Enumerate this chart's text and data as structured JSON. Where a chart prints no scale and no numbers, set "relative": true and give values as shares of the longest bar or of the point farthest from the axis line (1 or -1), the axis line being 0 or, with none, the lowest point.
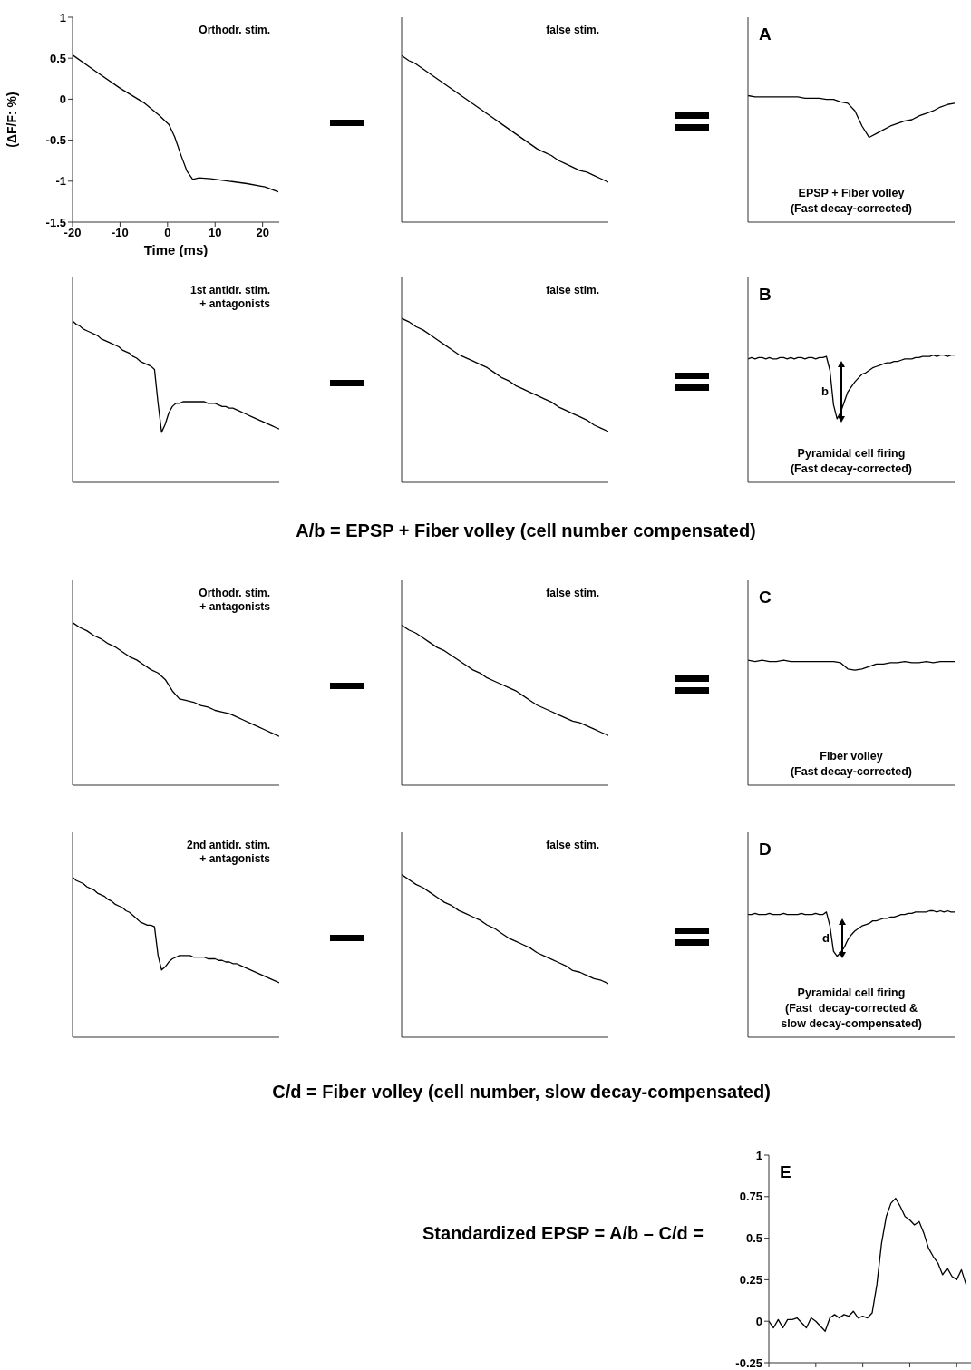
{
  "chart_data": [
    {
      "type": "line",
      "annotations": [
        "Orthodr. stim."
      ],
      "ylabel": "(ΔF/F: %)",
      "xlabel": "Time (ms)",
      "color": "#000000",
      "xlim": [
        -20,
        23.5
      ],
      "xticks": [
        -20,
        -10,
        0,
        10,
        20
      ],
      "ylim": [
        -1.5,
        1
      ],
      "yticks": [
        1,
        0.5,
        0,
        -0.5,
        -1,
        -1.5
      ],
      "x": [
        -20,
        -14.9,
        -9.9,
        -4.8,
        -1.7,
        0.3,
        1.5,
        2.8,
        4.1,
        5.3,
        6.6,
        9.1,
        12.9,
        16.7,
        20.5,
        23.3
      ],
      "values": [
        0.54,
        0.33,
        0.13,
        -0.05,
        -0.2,
        -0.31,
        -0.46,
        -0.68,
        -0.88,
        -0.98,
        -0.96,
        -0.97,
        -1.0,
        -1.03,
        -1.07,
        -1.13
      ]
    },
    {
      "type": "line",
      "relative": true,
      "annotations": [
        "false stim."
      ],
      "color": "#000000",
      "categories": [
        null,
        null,
        null,
        null,
        null,
        null,
        null,
        null,
        null,
        null,
        null,
        null,
        null,
        null,
        null,
        null,
        null,
        null,
        null,
        null,
        null,
        null,
        null,
        null,
        null,
        null,
        null,
        null,
        null,
        null
      ],
      "values": [
        1.0,
        0.97,
        0.95,
        0.92,
        0.89,
        0.86,
        0.83,
        0.8,
        0.77,
        0.74,
        0.71,
        0.68,
        0.65,
        0.62,
        0.59,
        0.56,
        0.53,
        0.5,
        0.47,
        0.44,
        0.42,
        0.4,
        0.37,
        0.35,
        0.33,
        0.31,
        0.3,
        0.28,
        0.26,
        0.24
      ]
    },
    {
      "type": "line",
      "relative": true,
      "title": "A",
      "annotations": [
        "EPSP + Fiber volley",
        "(Fast decay-corrected)"
      ],
      "color": "#000000",
      "categories": [
        null,
        null,
        null,
        null,
        null,
        null,
        null,
        null,
        null,
        null,
        null,
        null,
        null,
        null,
        null,
        null,
        null,
        null,
        null,
        null,
        null,
        null,
        null,
        null,
        null,
        null,
        null,
        null,
        null,
        null
      ],
      "values": [
        1.0,
        0.99,
        0.99,
        0.99,
        0.99,
        0.99,
        0.99,
        0.99,
        0.98,
        0.98,
        0.98,
        0.97,
        0.97,
        0.95,
        0.94,
        0.88,
        0.76,
        0.67,
        0.7,
        0.73,
        0.76,
        0.78,
        0.8,
        0.81,
        0.84,
        0.86,
        0.88,
        0.91,
        0.93,
        0.94
      ]
    },
    {
      "type": "line",
      "relative": true,
      "annotations": [
        "1st antidr. stim.",
        "+ antagonists"
      ],
      "color": "#000000",
      "categories": [
        null,
        null,
        null,
        null,
        null,
        null,
        null,
        null,
        null,
        null,
        null,
        null,
        null,
        null,
        null,
        null,
        null,
        null,
        null,
        null,
        null,
        null,
        null,
        null,
        null,
        null,
        null,
        null,
        null,
        null,
        null,
        null,
        null,
        null,
        null,
        null,
        null,
        null,
        null,
        null,
        null,
        null,
        null,
        null,
        null,
        null,
        null,
        null,
        null,
        null,
        null,
        null,
        null,
        null,
        null,
        null,
        null,
        null,
        null
      ],
      "values": [
        1.0,
        0.98,
        0.97,
        0.95,
        0.94,
        0.93,
        0.92,
        0.91,
        0.89,
        0.88,
        0.87,
        0.86,
        0.85,
        0.84,
        0.82,
        0.81,
        0.8,
        0.78,
        0.77,
        0.75,
        0.74,
        0.73,
        0.72,
        0.7,
        0.49,
        0.31,
        0.36,
        0.43,
        0.47,
        0.49,
        0.49,
        0.5,
        0.5,
        0.5,
        0.5,
        0.5,
        0.5,
        0.5,
        0.49,
        0.49,
        0.49,
        0.48,
        0.47,
        0.47,
        0.46,
        0.46,
        0.45,
        0.44,
        0.43,
        0.42,
        0.41,
        0.4,
        0.39,
        0.38,
        0.37,
        0.36,
        0.35,
        0.34,
        0.33
      ]
    },
    {
      "type": "line",
      "relative": true,
      "annotations": [
        "false stim."
      ],
      "color": "#000000",
      "categories": [
        null,
        null,
        null,
        null,
        null,
        null,
        null,
        null,
        null,
        null,
        null,
        null,
        null,
        null,
        null,
        null,
        null,
        null,
        null,
        null,
        null,
        null,
        null,
        null,
        null,
        null,
        null,
        null,
        null,
        null
      ],
      "values": [
        1.0,
        0.98,
        0.95,
        0.93,
        0.9,
        0.87,
        0.84,
        0.81,
        0.78,
        0.76,
        0.74,
        0.72,
        0.7,
        0.67,
        0.64,
        0.62,
        0.59,
        0.57,
        0.55,
        0.53,
        0.51,
        0.49,
        0.46,
        0.44,
        0.42,
        0.4,
        0.38,
        0.35,
        0.33,
        0.31
      ]
    },
    {
      "type": "line",
      "relative": true,
      "title": "B",
      "annotations": [
        "Pyramidal cell firing",
        "(Fast decay-corrected)",
        "b"
      ],
      "color": "#000000",
      "categories": [
        null,
        null,
        null,
        null,
        null,
        null,
        null,
        null,
        null,
        null,
        null,
        null,
        null,
        null,
        null,
        null,
        null,
        null,
        null,
        null,
        null,
        null,
        null,
        null,
        null,
        null,
        null,
        null,
        null,
        null,
        null,
        null,
        null,
        null,
        null,
        null,
        null,
        null,
        null,
        null,
        null,
        null,
        null,
        null,
        null,
        null,
        null,
        null,
        null,
        null,
        null,
        null,
        null,
        null,
        null,
        null,
        null,
        null,
        null
      ],
      "values": [
        0.97,
        0.98,
        0.97,
        0.98,
        0.98,
        0.97,
        0.98,
        0.97,
        0.97,
        0.98,
        0.98,
        0.97,
        0.98,
        0.97,
        0.98,
        0.98,
        0.97,
        0.98,
        0.98,
        0.97,
        0.98,
        0.98,
        0.99,
        0.88,
        0.61,
        0.5,
        0.55,
        0.63,
        0.71,
        0.75,
        0.79,
        0.82,
        0.85,
        0.86,
        0.88,
        0.9,
        0.91,
        0.92,
        0.93,
        0.94,
        0.94,
        0.95,
        0.95,
        0.96,
        0.97,
        0.97,
        0.97,
        0.98,
        0.98,
        0.99,
        0.99,
        0.99,
        1.0,
        0.99,
        1.0,
        1.0,
        0.99,
        1.0,
        1.0
      ]
    },
    {
      "type": "other",
      "title": "A/b = EPSP + Fiber volley (cell number compensated)"
    },
    {
      "type": "line",
      "relative": true,
      "annotations": [
        "Orthodr. stim.",
        "+ antagonists"
      ],
      "color": "#000000",
      "categories": [
        null,
        null,
        null,
        null,
        null,
        null,
        null,
        null,
        null,
        null,
        null,
        null,
        null,
        null,
        null,
        null,
        null,
        null,
        null,
        null,
        null,
        null,
        null,
        null,
        null,
        null,
        null,
        null,
        null,
        null
      ],
      "values": [
        1.0,
        0.97,
        0.95,
        0.92,
        0.9,
        0.87,
        0.85,
        0.82,
        0.79,
        0.77,
        0.74,
        0.71,
        0.69,
        0.65,
        0.58,
        0.53,
        0.52,
        0.51,
        0.49,
        0.48,
        0.46,
        0.45,
        0.44,
        0.42,
        0.4,
        0.38,
        0.36,
        0.34,
        0.32,
        0.3
      ]
    },
    {
      "type": "line",
      "relative": true,
      "annotations": [
        "false stim."
      ],
      "color": "#000000",
      "categories": [
        null,
        null,
        null,
        null,
        null,
        null,
        null,
        null,
        null,
        null,
        null,
        null,
        null,
        null,
        null,
        null,
        null,
        null,
        null,
        null,
        null,
        null,
        null,
        null,
        null,
        null,
        null,
        null,
        null,
        null
      ],
      "values": [
        1.0,
        0.97,
        0.95,
        0.92,
        0.89,
        0.86,
        0.84,
        0.81,
        0.78,
        0.75,
        0.72,
        0.7,
        0.67,
        0.65,
        0.63,
        0.61,
        0.59,
        0.56,
        0.53,
        0.5,
        0.48,
        0.46,
        0.44,
        0.42,
        0.4,
        0.39,
        0.37,
        0.35,
        0.33,
        0.31
      ]
    },
    {
      "type": "line",
      "relative": true,
      "title": "C",
      "annotations": [
        "Fiber volley",
        "(Fast decay-corrected)"
      ],
      "color": "#000000",
      "categories": [
        null,
        null,
        null,
        null,
        null,
        null,
        null,
        null,
        null,
        null,
        null,
        null,
        null,
        null,
        null,
        null,
        null,
        null,
        null,
        null,
        null,
        null,
        null,
        null,
        null,
        null,
        null,
        null,
        null,
        null
      ],
      "values": [
        1.0,
        0.99,
        1.0,
        0.99,
        0.99,
        1.0,
        0.99,
        0.99,
        0.99,
        0.99,
        0.99,
        0.99,
        0.99,
        0.98,
        0.93,
        0.92,
        0.93,
        0.95,
        0.97,
        0.97,
        0.98,
        0.98,
        0.99,
        0.98,
        0.98,
        0.99,
        0.98,
        0.99,
        0.99,
        0.99
      ]
    },
    {
      "type": "line",
      "relative": true,
      "annotations": [
        "2nd antidr. stim.",
        "+ antagonists"
      ],
      "color": "#000000",
      "categories": [
        null,
        null,
        null,
        null,
        null,
        null,
        null,
        null,
        null,
        null,
        null,
        null,
        null,
        null,
        null,
        null,
        null,
        null,
        null,
        null,
        null,
        null,
        null,
        null,
        null,
        null,
        null,
        null,
        null,
        null,
        null,
        null,
        null,
        null,
        null,
        null,
        null,
        null,
        null,
        null,
        null,
        null,
        null,
        null,
        null,
        null,
        null,
        null,
        null,
        null,
        null,
        null,
        null,
        null,
        null,
        null,
        null,
        null,
        null
      ],
      "values": [
        1.0,
        0.98,
        0.97,
        0.96,
        0.94,
        0.93,
        0.92,
        0.9,
        0.89,
        0.88,
        0.86,
        0.85,
        0.83,
        0.82,
        0.81,
        0.79,
        0.78,
        0.76,
        0.74,
        0.72,
        0.71,
        0.7,
        0.7,
        0.69,
        0.51,
        0.42,
        0.44,
        0.47,
        0.49,
        0.5,
        0.51,
        0.51,
        0.51,
        0.51,
        0.5,
        0.5,
        0.5,
        0.5,
        0.49,
        0.49,
        0.49,
        0.48,
        0.48,
        0.47,
        0.47,
        0.46,
        0.46,
        0.45,
        0.44,
        0.43,
        0.42,
        0.41,
        0.4,
        0.39,
        0.38,
        0.37,
        0.36,
        0.35,
        0.34
      ]
    },
    {
      "type": "line",
      "relative": true,
      "annotations": [
        "false stim."
      ],
      "color": "#000000",
      "categories": [
        null,
        null,
        null,
        null,
        null,
        null,
        null,
        null,
        null,
        null,
        null,
        null,
        null,
        null,
        null,
        null,
        null,
        null,
        null,
        null,
        null,
        null,
        null,
        null,
        null,
        null,
        null,
        null,
        null,
        null
      ],
      "values": [
        1.0,
        0.97,
        0.94,
        0.92,
        0.89,
        0.86,
        0.83,
        0.81,
        0.78,
        0.76,
        0.74,
        0.72,
        0.69,
        0.67,
        0.64,
        0.61,
        0.59,
        0.57,
        0.55,
        0.52,
        0.5,
        0.48,
        0.46,
        0.44,
        0.41,
        0.4,
        0.38,
        0.36,
        0.35,
        0.33
      ]
    },
    {
      "type": "line",
      "relative": true,
      "title": "D",
      "annotations": [
        "Pyramidal cell firing",
        "(Fast  decay-corrected &",
        "slow decay-compensated)",
        "d"
      ],
      "color": "#000000",
      "categories": [
        null,
        null,
        null,
        null,
        null,
        null,
        null,
        null,
        null,
        null,
        null,
        null,
        null,
        null,
        null,
        null,
        null,
        null,
        null,
        null,
        null,
        null,
        null,
        null,
        null,
        null,
        null,
        null,
        null,
        null,
        null,
        null,
        null,
        null,
        null,
        null,
        null,
        null,
        null,
        null,
        null,
        null,
        null,
        null,
        null,
        null,
        null,
        null,
        null,
        null,
        null,
        null,
        null,
        null,
        null,
        null,
        null,
        null,
        null
      ],
      "values": [
        0.97,
        0.97,
        0.98,
        0.97,
        0.97,
        0.97,
        0.98,
        0.97,
        0.97,
        0.97,
        0.98,
        0.97,
        0.97,
        0.97,
        0.97,
        0.98,
        0.97,
        0.97,
        0.97,
        0.98,
        0.97,
        0.97,
        0.99,
        0.88,
        0.68,
        0.64,
        0.67,
        0.71,
        0.77,
        0.81,
        0.84,
        0.86,
        0.88,
        0.89,
        0.9,
        0.92,
        0.92,
        0.93,
        0.94,
        0.94,
        0.95,
        0.95,
        0.96,
        0.97,
        0.97,
        0.98,
        0.98,
        0.99,
        0.99,
        0.99,
        0.99,
        1.0,
        1.0,
        0.99,
        1.0,
        0.99,
        1.0,
        0.99,
        0.99
      ]
    },
    {
      "type": "other",
      "title": "C/d = Fiber volley (cell number, slow decay-compensated)"
    },
    {
      "type": "other",
      "title": "Standardized EPSP = A/b – C/d ="
    },
    {
      "type": "line",
      "title": "E",
      "color": "#000000",
      "ylim": [
        -0.25,
        1
      ],
      "yticks": [
        1,
        0.75,
        0.5,
        0.25,
        0,
        -0.25
      ],
      "tick_labels": "y",
      "categories": [
        null,
        null,
        null,
        null,
        null,
        null,
        null,
        null,
        null,
        null,
        null,
        null,
        null,
        null,
        null,
        null,
        null,
        null,
        null,
        null,
        null,
        null,
        null,
        null,
        null,
        null,
        null,
        null,
        null,
        null,
        null,
        null,
        null,
        null,
        null,
        null,
        null,
        null,
        null,
        null,
        null,
        null,
        null,
        null,
        null
      ],
      "values": [
        0,
        -0.04,
        0.01,
        -0.04,
        0.01,
        0.01,
        0.02,
        -0.01,
        -0.04,
        0.02,
        0,
        -0.03,
        -0.06,
        0.02,
        0.04,
        0.02,
        0.04,
        0.03,
        0.06,
        0.02,
        0.03,
        0.02,
        0.05,
        0.22,
        0.47,
        0.63,
        0.71,
        0.74,
        0.69,
        0.63,
        0.61,
        0.58,
        0.6,
        0.53,
        0.44,
        0.39,
        0.35,
        0.28,
        0.32,
        0.27,
        0.25,
        0.31,
        0.22,
        null,
        null
      ]
    }
  ]
}
